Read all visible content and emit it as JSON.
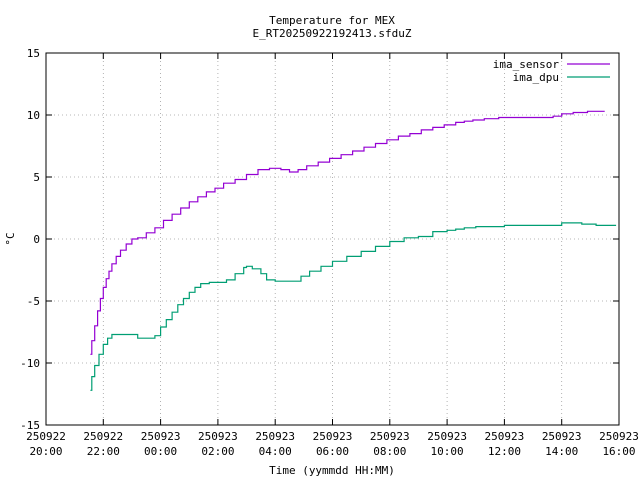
{
  "chart_data": {
    "type": "line",
    "title": "Temperature for MEX",
    "subtitle": "E_RT20250922192413.sfduZ",
    "xlabel": "Time (yymmdd HH:MM)",
    "ylabel": "°C",
    "xlim": [
      "250922 20:00",
      "250923 16:00"
    ],
    "ylim": [
      -15,
      15
    ],
    "grid": true,
    "legend_position": "top-right",
    "x_ticks": [
      {
        "date": "250922",
        "time": "20:00",
        "hour": 20
      },
      {
        "date": "250922",
        "time": "22:00",
        "hour": 22
      },
      {
        "date": "250923",
        "time": "00:00",
        "hour": 24
      },
      {
        "date": "250923",
        "time": "02:00",
        "hour": 26
      },
      {
        "date": "250923",
        "time": "04:00",
        "hour": 28
      },
      {
        "date": "250923",
        "time": "06:00",
        "hour": 30
      },
      {
        "date": "250923",
        "time": "08:00",
        "hour": 32
      },
      {
        "date": "250923",
        "time": "10:00",
        "hour": 34
      },
      {
        "date": "250923",
        "time": "12:00",
        "hour": 36
      },
      {
        "date": "250923",
        "time": "14:00",
        "hour": 38
      },
      {
        "date": "250923",
        "time": "16:00",
        "hour": 40
      }
    ],
    "y_ticks": [
      {
        "label": "-15",
        "value": -15
      },
      {
        "label": "-10",
        "value": -10
      },
      {
        "label": "-5",
        "value": -5
      },
      {
        "label": "0",
        "value": 0
      },
      {
        "label": "5",
        "value": 5
      },
      {
        "label": "10",
        "value": 10
      },
      {
        "label": "15",
        "value": 15
      }
    ],
    "series": [
      {
        "name": "ima_sensor",
        "color": "#9400d3",
        "points": [
          [
            21.55,
            -9.3
          ],
          [
            21.6,
            -8.2
          ],
          [
            21.7,
            -7.0
          ],
          [
            21.8,
            -5.8
          ],
          [
            21.9,
            -4.8
          ],
          [
            22.0,
            -3.9
          ],
          [
            22.1,
            -3.2
          ],
          [
            22.2,
            -2.6
          ],
          [
            22.3,
            -2.0
          ],
          [
            22.45,
            -1.4
          ],
          [
            22.6,
            -0.9
          ],
          [
            22.8,
            -0.4
          ],
          [
            23.0,
            0.0
          ],
          [
            23.2,
            0.1
          ],
          [
            23.5,
            0.5
          ],
          [
            23.8,
            0.9
          ],
          [
            24.1,
            1.5
          ],
          [
            24.4,
            2.0
          ],
          [
            24.7,
            2.5
          ],
          [
            25.0,
            3.0
          ],
          [
            25.3,
            3.4
          ],
          [
            25.6,
            3.8
          ],
          [
            25.9,
            4.1
          ],
          [
            26.2,
            4.5
          ],
          [
            26.6,
            4.8
          ],
          [
            27.0,
            5.2
          ],
          [
            27.4,
            5.6
          ],
          [
            27.8,
            5.7
          ],
          [
            28.2,
            5.6
          ],
          [
            28.5,
            5.4
          ],
          [
            28.8,
            5.6
          ],
          [
            29.1,
            5.9
          ],
          [
            29.5,
            6.2
          ],
          [
            29.9,
            6.5
          ],
          [
            30.3,
            6.8
          ],
          [
            30.7,
            7.1
          ],
          [
            31.1,
            7.4
          ],
          [
            31.5,
            7.7
          ],
          [
            31.9,
            8.0
          ],
          [
            32.3,
            8.3
          ],
          [
            32.7,
            8.5
          ],
          [
            33.1,
            8.8
          ],
          [
            33.5,
            9.0
          ],
          [
            33.9,
            9.2
          ],
          [
            34.3,
            9.4
          ],
          [
            34.6,
            9.5
          ],
          [
            34.9,
            9.6
          ],
          [
            35.3,
            9.7
          ],
          [
            35.8,
            9.8
          ],
          [
            36.5,
            9.8
          ],
          [
            37.2,
            9.8
          ],
          [
            37.7,
            9.9
          ],
          [
            38.0,
            10.1
          ],
          [
            38.4,
            10.2
          ],
          [
            38.9,
            10.3
          ],
          [
            39.5,
            10.3
          ]
        ]
      },
      {
        "name": "ima_dpu",
        "color": "#009e73",
        "points": [
          [
            21.55,
            -12.2
          ],
          [
            21.6,
            -11.1
          ],
          [
            21.7,
            -10.2
          ],
          [
            21.85,
            -9.3
          ],
          [
            22.0,
            -8.5
          ],
          [
            22.15,
            -8.0
          ],
          [
            22.3,
            -7.7
          ],
          [
            22.6,
            -7.7
          ],
          [
            22.9,
            -7.7
          ],
          [
            23.2,
            -8.0
          ],
          [
            23.5,
            -8.0
          ],
          [
            23.8,
            -7.8
          ],
          [
            24.0,
            -7.1
          ],
          [
            24.2,
            -6.5
          ],
          [
            24.4,
            -5.9
          ],
          [
            24.6,
            -5.3
          ],
          [
            24.8,
            -4.8
          ],
          [
            25.0,
            -4.3
          ],
          [
            25.2,
            -3.9
          ],
          [
            25.4,
            -3.6
          ],
          [
            25.7,
            -3.5
          ],
          [
            26.0,
            -3.5
          ],
          [
            26.3,
            -3.3
          ],
          [
            26.6,
            -2.8
          ],
          [
            26.9,
            -2.3
          ],
          [
            27.0,
            -2.2
          ],
          [
            27.2,
            -2.4
          ],
          [
            27.5,
            -2.8
          ],
          [
            27.7,
            -3.3
          ],
          [
            28.0,
            -3.4
          ],
          [
            28.3,
            -3.4
          ],
          [
            28.6,
            -3.4
          ],
          [
            28.9,
            -3.0
          ],
          [
            29.2,
            -2.6
          ],
          [
            29.6,
            -2.2
          ],
          [
            30.0,
            -1.8
          ],
          [
            30.5,
            -1.4
          ],
          [
            31.0,
            -1.0
          ],
          [
            31.5,
            -0.6
          ],
          [
            32.0,
            -0.2
          ],
          [
            32.5,
            0.1
          ],
          [
            33.0,
            0.2
          ],
          [
            33.5,
            0.6
          ],
          [
            34.0,
            0.7
          ],
          [
            34.3,
            0.8
          ],
          [
            34.6,
            0.9
          ],
          [
            35.0,
            1.0
          ],
          [
            35.5,
            1.0
          ],
          [
            36.0,
            1.1
          ],
          [
            36.8,
            1.1
          ],
          [
            37.5,
            1.1
          ],
          [
            38.0,
            1.3
          ],
          [
            38.4,
            1.3
          ],
          [
            38.7,
            1.2
          ],
          [
            39.2,
            1.1
          ],
          [
            39.9,
            1.1
          ]
        ]
      }
    ]
  }
}
